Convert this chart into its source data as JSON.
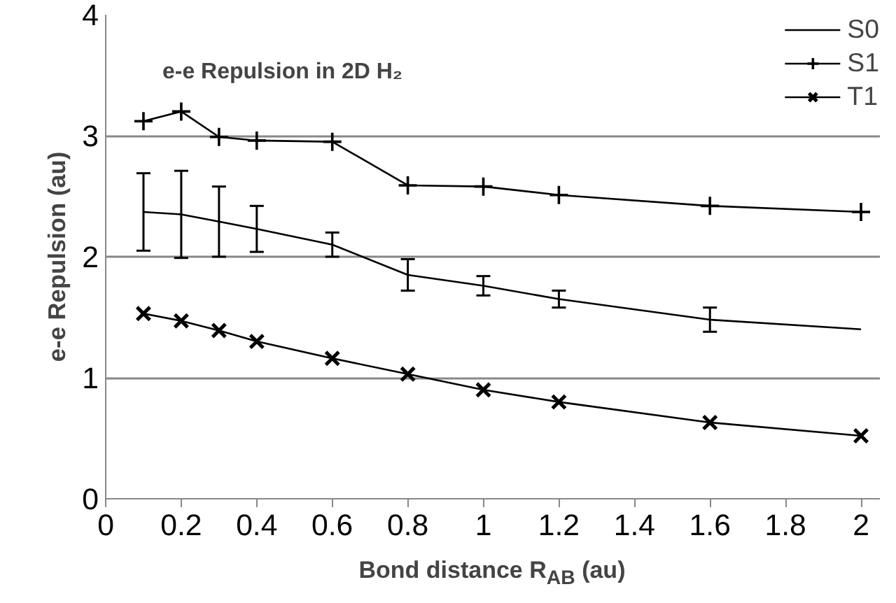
{
  "chart_data": {
    "type": "line",
    "title": "e-e Repulsion in 2D H₂",
    "xlabel": "Bond distance R$_{AB}$ (au)",
    "ylabel": "e-e Repulsion (au)",
    "x": [
      0.1,
      0.2,
      0.3,
      0.4,
      0.6,
      0.8,
      1.0,
      1.2,
      1.6,
      2.0
    ],
    "series": [
      {
        "name": "S0",
        "color": "#000000",
        "marker": "none",
        "values": [
          2.37,
          2.35,
          2.29,
          2.23,
          2.1,
          1.85,
          1.76,
          1.65,
          1.48,
          1.4
        ],
        "errors": [
          0.32,
          0.36,
          0.29,
          0.19,
          0.1,
          0.13,
          0.08,
          0.07,
          0.1,
          null
        ]
      },
      {
        "name": "S1",
        "color": "#000000",
        "marker": "cross",
        "values": [
          3.12,
          3.2,
          2.99,
          2.96,
          2.95,
          2.59,
          2.58,
          2.51,
          2.42,
          2.37
        ]
      },
      {
        "name": "T1",
        "color": "#000000",
        "marker": "x",
        "values": [
          1.53,
          1.47,
          1.39,
          1.3,
          1.16,
          1.03,
          0.9,
          0.8,
          0.63,
          0.52
        ]
      }
    ],
    "xlim": [
      0,
      2.05
    ],
    "ylim": [
      0,
      4
    ],
    "xticks": [
      0,
      0.2,
      0.4,
      0.6,
      0.8,
      1,
      1.2,
      1.4,
      1.6,
      1.8,
      2
    ],
    "yticks": [
      0,
      1,
      2,
      3,
      4
    ],
    "grid": "y",
    "legend": "top right",
    "line_style": "solid"
  }
}
